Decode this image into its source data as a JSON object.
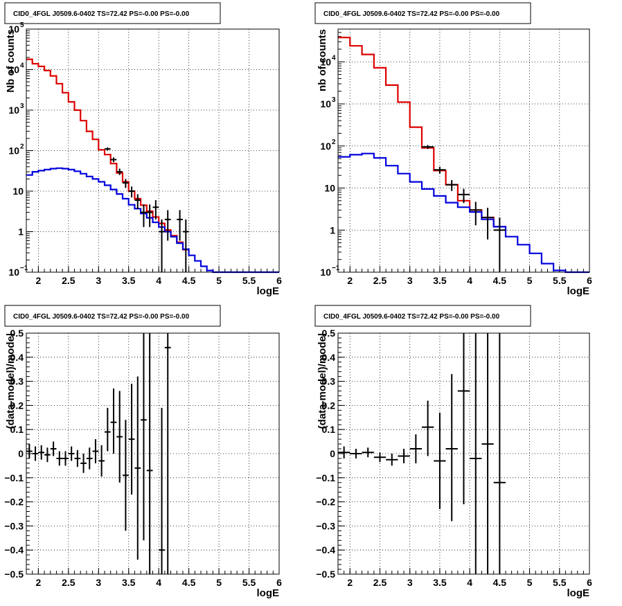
{
  "chart_data": [
    {
      "type": "step",
      "panel": "top-left",
      "title": "CID0_4FGL J0509.6-0402 TS=72.42 PS=-0.00 PS=-0.00",
      "xlabel": "logE",
      "ylabel": "Nb of counts",
      "xlim": [
        1.8,
        6
      ],
      "ylim": [
        0.1,
        100000
      ],
      "log_y": true,
      "grid": true,
      "x_ticks": [
        "2",
        "2.5",
        "3",
        "3.5",
        "4",
        "4.5",
        "5",
        "5.5",
        "6"
      ],
      "y_ticks": [
        {
          "value": 0.1,
          "base": "10",
          "exp": "−1"
        },
        {
          "value": 1,
          "label": "1"
        },
        {
          "value": 10,
          "label": "10"
        },
        {
          "value": 100,
          "base": "10",
          "exp": "2"
        },
        {
          "value": 1000,
          "base": "10",
          "exp": "3"
        },
        {
          "value": 10000,
          "base": "10",
          "exp": "4"
        },
        {
          "value": 100000,
          "base": "10",
          "exp": "5"
        }
      ],
      "bin_width": 0.1,
      "bin_starts": [
        1.8,
        1.9,
        2.0,
        2.1,
        2.2,
        2.3,
        2.4,
        2.5,
        2.6,
        2.7,
        2.8,
        2.9,
        3.0,
        3.1,
        3.2,
        3.3,
        3.4,
        3.5,
        3.6,
        3.7,
        3.8,
        3.9,
        4.0,
        4.1,
        4.2,
        4.3,
        4.4,
        4.5,
        4.6,
        4.7,
        4.8,
        4.9,
        5.0,
        5.1,
        5.2,
        5.3,
        5.4,
        5.5,
        5.6,
        5.7,
        5.8,
        5.9
      ],
      "series": [
        {
          "color": "#dd0000",
          "style": "step",
          "values": [
            18000,
            14000,
            12000,
            9500,
            7000,
            4500,
            2700,
            1600,
            1000,
            550,
            300,
            190,
            105,
            80,
            48,
            28,
            17,
            10,
            6.5,
            4.5,
            3.2,
            2.3,
            1.6,
            1.1,
            0.8,
            0.55,
            0.36
          ]
        },
        {
          "color": "#0000dd",
          "style": "step",
          "values": [
            25,
            30,
            32,
            34,
            36,
            37,
            36,
            34,
            31,
            27,
            23,
            20,
            17,
            14,
            11,
            8.5,
            6.5,
            4.6,
            3.7,
            2.8,
            2.2,
            1.7,
            1.3,
            1.0,
            0.75,
            0.52,
            0.37,
            0.26,
            0.19,
            0.14,
            0.11,
            0.1,
            0.09,
            0.09,
            0.09,
            0.09,
            0.09,
            0.09,
            0.09,
            0.09,
            0.09,
            0.09
          ]
        },
        {
          "color": "#000000",
          "style": "errorbar",
          "points": [
            {
              "x": 3.15,
              "y": 110,
              "lo": 100,
              "hi": 120
            },
            {
              "x": 3.25,
              "y": 60,
              "lo": 52,
              "hi": 68
            },
            {
              "x": 3.35,
              "y": 30,
              "lo": 25,
              "hi": 36
            },
            {
              "x": 3.45,
              "y": 16,
              "lo": 12,
              "hi": 20
            },
            {
              "x": 3.55,
              "y": 10,
              "lo": 7,
              "hi": 13
            },
            {
              "x": 3.65,
              "y": 6,
              "lo": 3.6,
              "hi": 8.4
            },
            {
              "x": 3.75,
              "y": 3,
              "lo": 1.3,
              "hi": 4.7
            },
            {
              "x": 3.85,
              "y": 3,
              "lo": 1.3,
              "hi": 4.7
            },
            {
              "x": 3.95,
              "y": 4,
              "lo": 2,
              "hi": 6
            },
            {
              "x": 4.05,
              "y": 1,
              "lo": 0.08,
              "hi": 2
            },
            {
              "x": 4.15,
              "y": 2,
              "lo": 0.6,
              "hi": 3.4
            },
            {
              "x": 4.35,
              "y": 2,
              "lo": 0.6,
              "hi": 3.4
            },
            {
              "x": 4.45,
              "y": 1,
              "lo": 0.08,
              "hi": 2
            }
          ]
        }
      ]
    },
    {
      "type": "step",
      "panel": "top-right",
      "title": "CID0_4FGL J0509.6-0402 TS=72.42 PS=-0.00 PS=-0.00",
      "xlabel": "logE",
      "ylabel": "nb of counts",
      "xlim": [
        1.8,
        6
      ],
      "ylim": [
        0.1,
        60000
      ],
      "log_y": true,
      "grid": true,
      "x_ticks": [
        "2",
        "2.5",
        "3",
        "3.5",
        "4",
        "4.5",
        "5",
        "5.5",
        "6"
      ],
      "y_ticks": [
        {
          "value": 0.1,
          "base": "10",
          "exp": "−1"
        },
        {
          "value": 1,
          "label": "1"
        },
        {
          "value": 10,
          "label": "10"
        },
        {
          "value": 100,
          "base": "10",
          "exp": "2"
        },
        {
          "value": 1000,
          "base": "10",
          "exp": "3"
        },
        {
          "value": 10000,
          "base": "10",
          "exp": "4"
        }
      ],
      "bin_width": 0.2,
      "bin_starts": [
        1.8,
        2.0,
        2.2,
        2.4,
        2.6,
        2.8,
        3.0,
        3.2,
        3.4,
        3.6,
        3.8,
        4.0,
        4.2,
        4.4,
        4.6,
        4.8,
        5.0,
        5.2,
        5.4,
        5.6,
        5.8
      ],
      "series": [
        {
          "color": "#dd0000",
          "style": "step",
          "values": [
            38000,
            24000,
            15000,
            7200,
            2800,
            1100,
            280,
            90,
            26,
            12,
            5,
            3,
            2,
            1.2
          ]
        },
        {
          "color": "#0000dd",
          "style": "step",
          "values": [
            55,
            62,
            66,
            52,
            34,
            22,
            14,
            9.5,
            6.5,
            4.5,
            3.5,
            2.7,
            1.8,
            1.2,
            0.7,
            0.45,
            0.28,
            0.16,
            0.11,
            0.1,
            0.1
          ]
        },
        {
          "color": "#000000",
          "style": "errorbar",
          "points": [
            {
              "x": 3.3,
              "y": 95,
              "lo": 85,
              "hi": 105
            },
            {
              "x": 3.5,
              "y": 27,
              "lo": 22,
              "hi": 32
            },
            {
              "x": 3.7,
              "y": 12,
              "lo": 8.5,
              "hi": 15.5
            },
            {
              "x": 3.9,
              "y": 7,
              "lo": 4.4,
              "hi": 9.6
            },
            {
              "x": 4.1,
              "y": 3,
              "lo": 1.3,
              "hi": 4.7
            },
            {
              "x": 4.3,
              "y": 2,
              "lo": 0.6,
              "hi": 3.4
            },
            {
              "x": 4.5,
              "y": 1,
              "lo": 0.08,
              "hi": 2
            }
          ]
        }
      ]
    },
    {
      "type": "scatter",
      "panel": "bottom-left",
      "title": "CID0_4FGL J0509.6-0402 TS=72.42 PS=-0.00 PS=-0.00",
      "xlabel": "logE",
      "ylabel": "(data-model)/model",
      "xlim": [
        1.8,
        6
      ],
      "ylim": [
        -0.5,
        0.5
      ],
      "log_y": false,
      "grid": true,
      "x_ticks": [
        "2",
        "2.5",
        "3",
        "3.5",
        "4",
        "4.5",
        "5",
        "5.5",
        "6"
      ],
      "y_ticks": [
        "−0.5",
        "−0.4",
        "−0.3",
        "−0.2",
        "−0.1",
        "0",
        "0.1",
        "0.2",
        "0.3",
        "0.4",
        "0.5"
      ],
      "xerr": 0.05,
      "points": [
        {
          "x": 1.85,
          "y": 0.01,
          "lo": -0.02,
          "hi": 0.04
        },
        {
          "x": 1.95,
          "y": 0.0,
          "lo": -0.03,
          "hi": 0.03
        },
        {
          "x": 2.05,
          "y": 0.005,
          "lo": -0.025,
          "hi": 0.035
        },
        {
          "x": 2.15,
          "y": -0.005,
          "lo": -0.035,
          "hi": 0.025
        },
        {
          "x": 2.25,
          "y": 0.02,
          "lo": -0.01,
          "hi": 0.05
        },
        {
          "x": 2.35,
          "y": -0.02,
          "lo": -0.05,
          "hi": 0.01
        },
        {
          "x": 2.45,
          "y": -0.02,
          "lo": -0.05,
          "hi": 0.01
        },
        {
          "x": 2.55,
          "y": 0.0,
          "lo": -0.03,
          "hi": 0.03
        },
        {
          "x": 2.65,
          "y": -0.02,
          "lo": -0.055,
          "hi": 0.015
        },
        {
          "x": 2.75,
          "y": -0.04,
          "lo": -0.08,
          "hi": 0.0
        },
        {
          "x": 2.85,
          "y": -0.02,
          "lo": -0.065,
          "hi": 0.025
        },
        {
          "x": 2.95,
          "y": 0.01,
          "lo": -0.04,
          "hi": 0.06
        },
        {
          "x": 3.05,
          "y": -0.03,
          "lo": -0.095,
          "hi": 0.035
        },
        {
          "x": 3.15,
          "y": 0.09,
          "lo": 0.01,
          "hi": 0.19
        },
        {
          "x": 3.25,
          "y": 0.13,
          "lo": 0.0,
          "hi": 0.27
        },
        {
          "x": 3.35,
          "y": 0.07,
          "lo": -0.12,
          "hi": 0.26
        },
        {
          "x": 3.45,
          "y": -0.09,
          "lo": -0.32,
          "hi": 0.14
        },
        {
          "x": 3.55,
          "y": 0.06,
          "lo": -0.17,
          "hi": 0.29
        },
        {
          "x": 3.65,
          "y": -0.06,
          "lo": -0.44,
          "hi": 0.32
        },
        {
          "x": 3.75,
          "y": 0.14,
          "lo": -0.36,
          "hi": 0.5
        },
        {
          "x": 3.85,
          "y": -0.07,
          "lo": -0.5,
          "hi": 0.5
        },
        {
          "x": 4.05,
          "y": -0.4,
          "lo": -0.5,
          "hi": 0.19
        },
        {
          "x": 4.15,
          "y": 0.44,
          "lo": -0.5,
          "hi": 0.5
        }
      ]
    },
    {
      "type": "scatter",
      "panel": "bottom-right",
      "title": "CID0_4FGL J0509.6-0402 TS=72.42 PS=-0.00 PS=-0.00",
      "xlabel": "logE",
      "ylabel": "(data-model)/model",
      "xlim": [
        1.8,
        6
      ],
      "ylim": [
        -0.5,
        0.5
      ],
      "log_y": false,
      "grid": true,
      "x_ticks": [
        "2",
        "2.5",
        "3",
        "3.5",
        "4",
        "4.5",
        "5",
        "5.5",
        "6"
      ],
      "y_ticks": [
        "−0.5",
        "−0.4",
        "−0.3",
        "−0.2",
        "−0.1",
        "0",
        "0.1",
        "0.2",
        "0.3",
        "0.4",
        "0.5"
      ],
      "xerr": 0.1,
      "points": [
        {
          "x": 1.9,
          "y": 0.005,
          "lo": -0.02,
          "hi": 0.03
        },
        {
          "x": 2.1,
          "y": 0.0,
          "lo": -0.02,
          "hi": 0.02
        },
        {
          "x": 2.3,
          "y": 0.005,
          "lo": -0.015,
          "hi": 0.025
        },
        {
          "x": 2.5,
          "y": -0.015,
          "lo": -0.035,
          "hi": 0.005
        },
        {
          "x": 2.7,
          "y": -0.025,
          "lo": -0.05,
          "hi": 0.0
        },
        {
          "x": 2.9,
          "y": -0.01,
          "lo": -0.04,
          "hi": 0.02
        },
        {
          "x": 3.1,
          "y": 0.02,
          "lo": -0.04,
          "hi": 0.08
        },
        {
          "x": 3.3,
          "y": 0.11,
          "lo": -0.01,
          "hi": 0.22
        },
        {
          "x": 3.5,
          "y": -0.03,
          "lo": -0.23,
          "hi": 0.17
        },
        {
          "x": 3.7,
          "y": 0.02,
          "lo": -0.28,
          "hi": 0.33
        },
        {
          "x": 3.9,
          "y": 0.26,
          "lo": -0.21,
          "hi": 0.5
        },
        {
          "x": 4.1,
          "y": -0.02,
          "lo": -0.5,
          "hi": 0.5
        },
        {
          "x": 4.3,
          "y": 0.04,
          "lo": -0.5,
          "hi": 0.5
        },
        {
          "x": 4.5,
          "y": -0.12,
          "lo": -0.5,
          "hi": 0.5
        }
      ]
    }
  ]
}
